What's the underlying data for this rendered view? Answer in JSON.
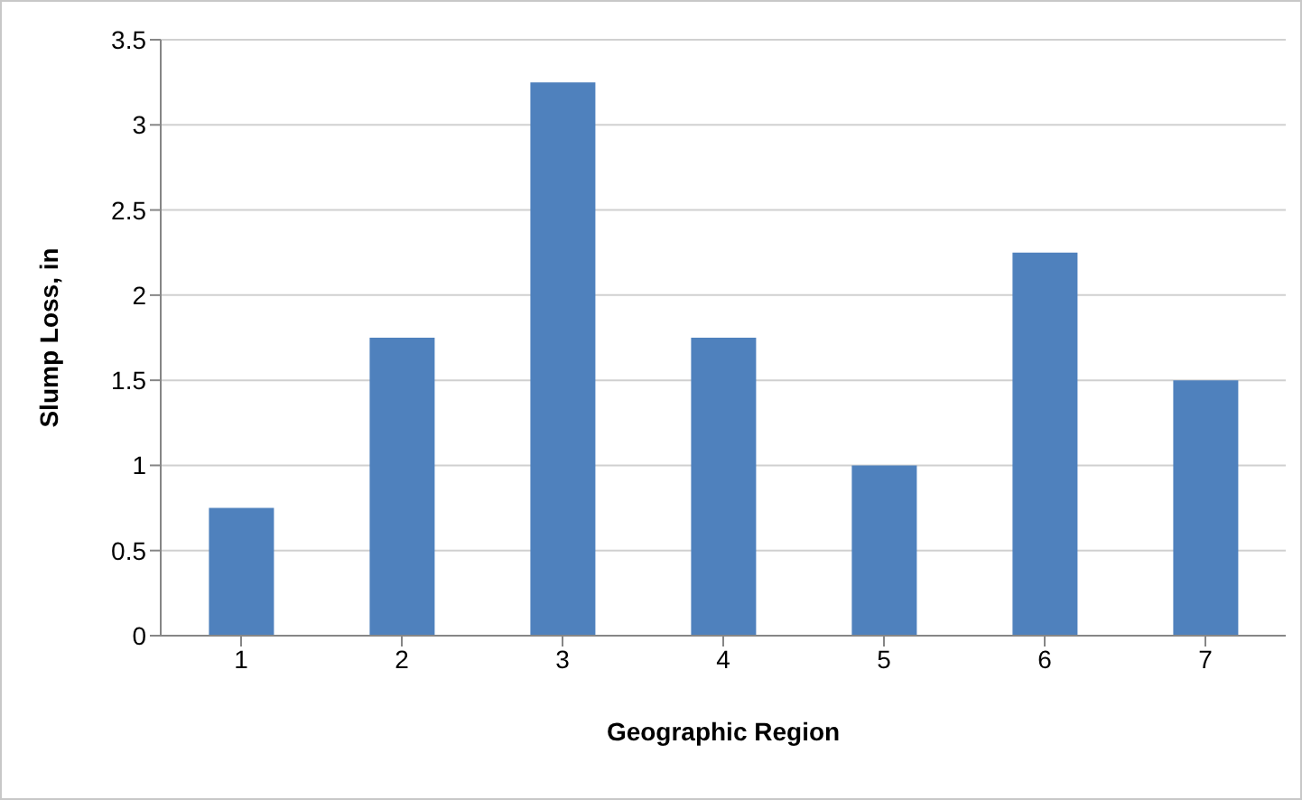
{
  "chart_data": {
    "type": "bar",
    "xlabel": "Geographic Region",
    "ylabel": "Slump Loss, in",
    "categories": [
      "1",
      "2",
      "3",
      "4",
      "5",
      "6",
      "7"
    ],
    "values": [
      0.75,
      1.75,
      3.25,
      1.75,
      1.0,
      2.25,
      1.5
    ],
    "color": "#4f81bd",
    "ylim": [
      0,
      3.5
    ],
    "yticks": [
      0,
      0.5,
      1,
      1.5,
      2,
      2.5,
      3,
      3.5
    ],
    "grid": "y",
    "legend": false
  }
}
